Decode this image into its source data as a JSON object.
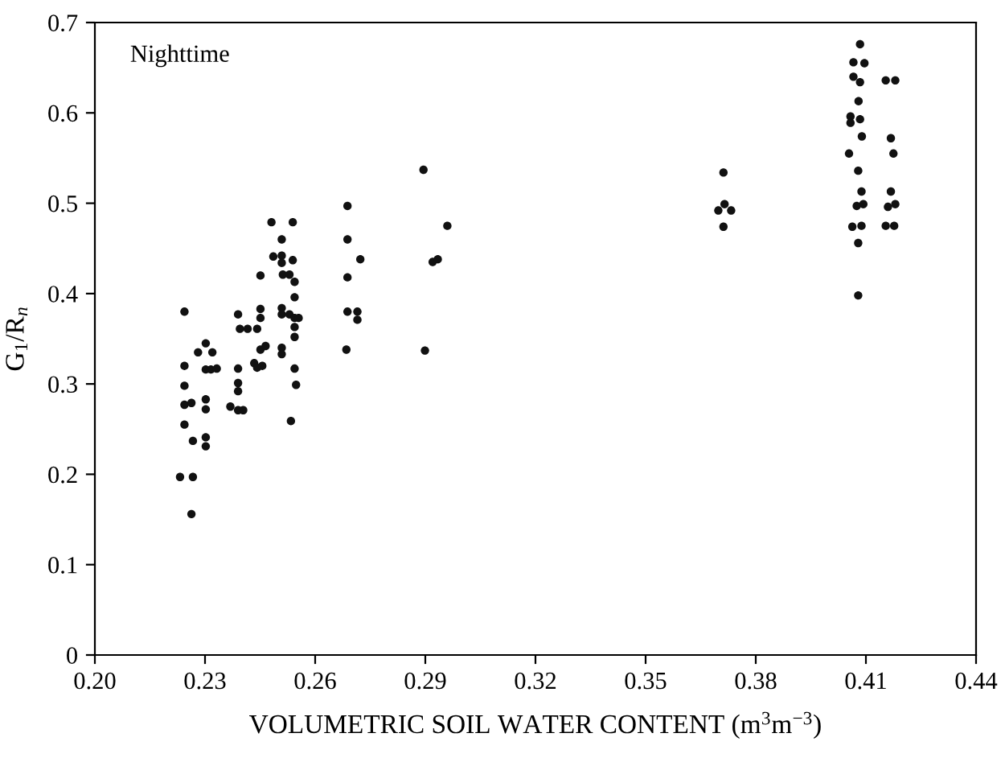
{
  "chart_data": {
    "type": "scatter",
    "xlabel": "VOLUMETRIC SOIL WATER CONTENT (m$^{3}$m$^{−3}$)",
    "ylabel": "G$_{1}$/R$_{n}$",
    "annotations": [
      "Nighttime"
    ],
    "x": [
      0.2244,
      0.2244,
      0.2244,
      0.2244,
      0.2244,
      0.2232,
      0.2267,
      0.2263,
      0.2267,
      0.2263,
      0.2281,
      0.2302,
      0.232,
      0.2302,
      0.2316,
      0.2332,
      0.2302,
      0.2302,
      0.2302,
      0.2302,
      0.2369,
      0.239,
      0.2404,
      0.239,
      0.239,
      0.239,
      0.239,
      0.2395,
      0.2416,
      0.2442,
      0.2451,
      0.2451,
      0.2451,
      0.2451,
      0.2465,
      0.2434,
      0.2442,
      0.2456,
      0.2481,
      0.2486,
      0.2509,
      0.2509,
      0.2509,
      0.2512,
      0.2509,
      0.2509,
      0.2509,
      0.2509,
      0.253,
      0.2539,
      0.2539,
      0.253,
      0.2544,
      0.2544,
      0.2544,
      0.2555,
      0.2544,
      0.2544,
      0.2544,
      0.2548,
      0.2534,
      0.2688,
      0.2688,
      0.2688,
      0.2685,
      0.2688,
      0.2715,
      0.2715,
      0.2723,
      0.2895,
      0.2899,
      0.292,
      0.2934,
      0.296,
      0.3712,
      0.3698,
      0.3715,
      0.3733,
      0.3712,
      0.4084,
      0.4066,
      0.4096,
      0.4066,
      0.4084,
      0.408,
      0.4058,
      0.4058,
      0.4084,
      0.4089,
      0.4054,
      0.4079,
      0.4088,
      0.4075,
      0.4093,
      0.4063,
      0.4088,
      0.4079,
      0.4079,
      0.4154,
      0.418,
      0.4168,
      0.4175,
      0.4168,
      0.416,
      0.418,
      0.4154,
      0.4177
    ],
    "values": [
      0.38,
      0.32,
      0.298,
      0.277,
      0.255,
      0.197,
      0.197,
      0.279,
      0.237,
      0.156,
      0.335,
      0.345,
      0.335,
      0.316,
      0.316,
      0.317,
      0.283,
      0.272,
      0.241,
      0.231,
      0.275,
      0.271,
      0.271,
      0.292,
      0.301,
      0.317,
      0.377,
      0.361,
      0.361,
      0.361,
      0.373,
      0.383,
      0.42,
      0.338,
      0.342,
      0.323,
      0.318,
      0.32,
      0.479,
      0.441,
      0.46,
      0.442,
      0.434,
      0.421,
      0.384,
      0.377,
      0.34,
      0.333,
      0.377,
      0.479,
      0.437,
      0.421,
      0.413,
      0.396,
      0.373,
      0.373,
      0.363,
      0.352,
      0.317,
      0.299,
      0.259,
      0.497,
      0.46,
      0.418,
      0.338,
      0.38,
      0.38,
      0.371,
      0.438,
      0.537,
      0.337,
      0.435,
      0.438,
      0.475,
      0.534,
      0.492,
      0.499,
      0.492,
      0.474,
      0.676,
      0.656,
      0.655,
      0.64,
      0.634,
      0.613,
      0.596,
      0.589,
      0.593,
      0.574,
      0.555,
      0.536,
      0.513,
      0.497,
      0.499,
      0.474,
      0.475,
      0.456,
      0.398,
      0.636,
      0.636,
      0.572,
      0.555,
      0.513,
      0.496,
      0.499,
      0.475,
      0.475
    ],
    "color": "#111111",
    "marker": "circle",
    "grid": false,
    "xlim": [
      0.2,
      0.44
    ],
    "xticks": [
      {
        "value": 0.2,
        "label": "0.20"
      },
      {
        "value": 0.23,
        "label": "0.23"
      },
      {
        "value": 0.26,
        "label": "0.26"
      },
      {
        "value": 0.29,
        "label": "0.29"
      },
      {
        "value": 0.32,
        "label": "0.32"
      },
      {
        "value": 0.35,
        "label": "0.35"
      },
      {
        "value": 0.38,
        "label": "0.38"
      },
      {
        "value": 0.41,
        "label": "0.41"
      },
      {
        "value": 0.44,
        "label": "0.44"
      }
    ],
    "ylim": [
      0,
      0.7
    ],
    "yticks": [
      0,
      0.1,
      0.2,
      0.3,
      0.4,
      0.5,
      0.6,
      0.7
    ]
  }
}
